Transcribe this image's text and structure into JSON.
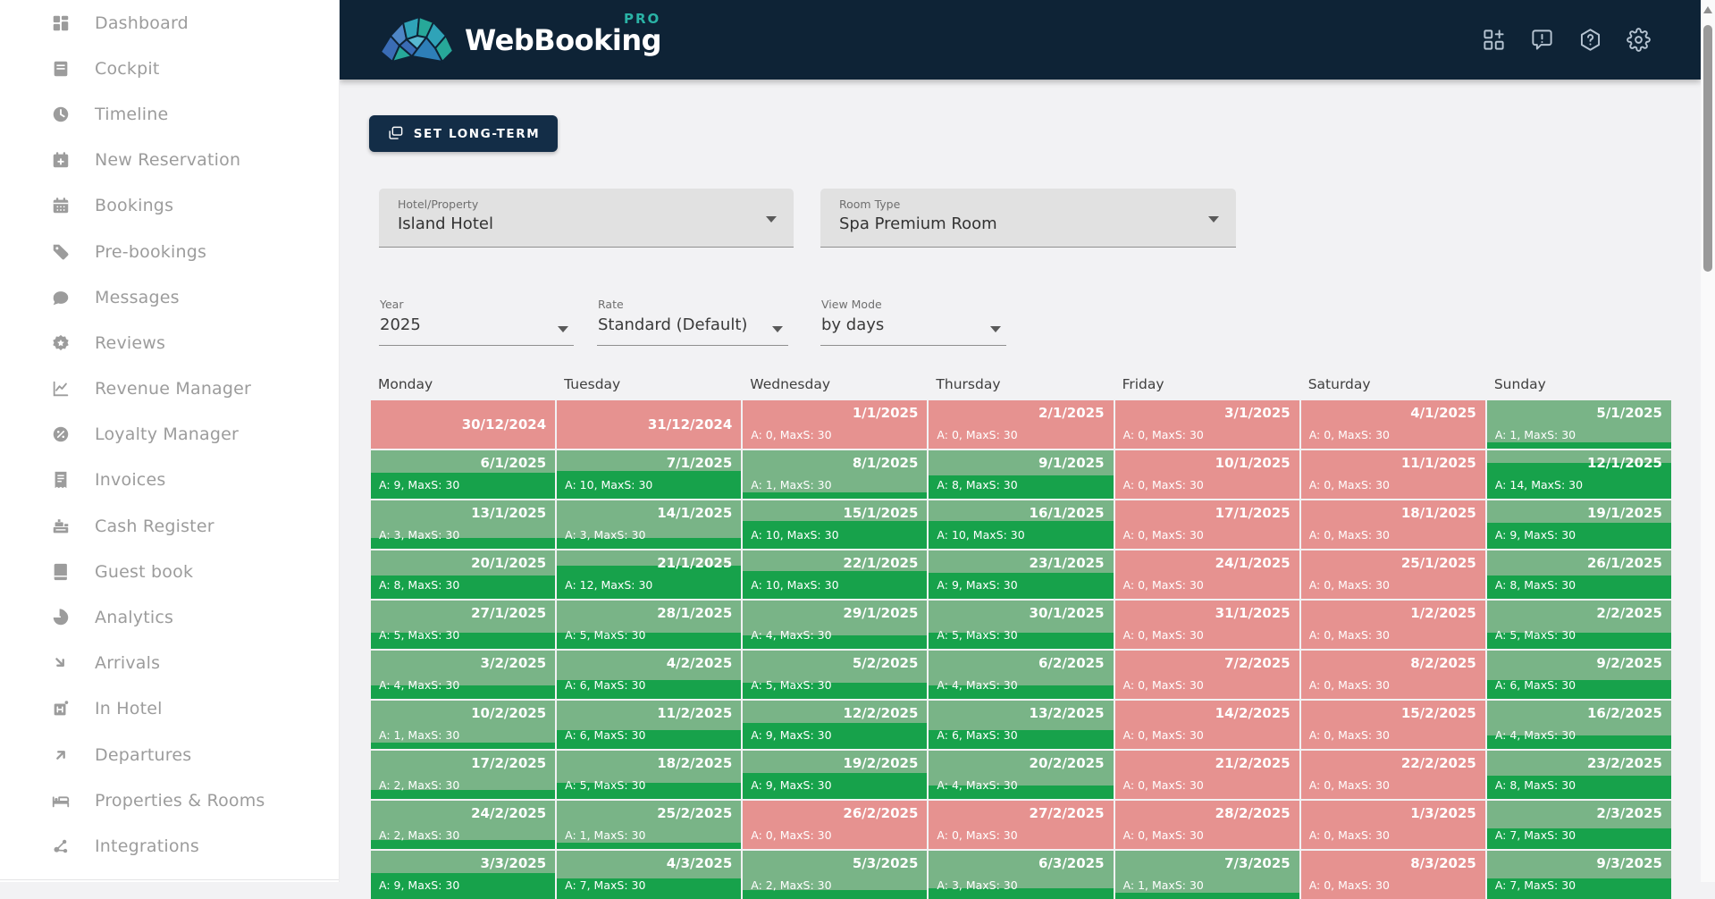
{
  "header": {
    "logo_text": "WebBooking",
    "logo_badge": "PRO",
    "action_icons": [
      "grid-plus",
      "comment-alert",
      "help-hexagon",
      "settings-gear"
    ]
  },
  "sidebar": {
    "items": [
      {
        "label": "Dashboard",
        "icon": "dashboard"
      },
      {
        "label": "Cockpit",
        "icon": "cockpit"
      },
      {
        "label": "Timeline",
        "icon": "timeline"
      },
      {
        "label": "New Reservation",
        "icon": "new-reservation"
      },
      {
        "label": "Bookings",
        "icon": "bookings"
      },
      {
        "label": "Pre-bookings",
        "icon": "pre-bookings"
      },
      {
        "label": "Messages",
        "icon": "messages"
      },
      {
        "label": "Reviews",
        "icon": "reviews"
      },
      {
        "label": "Revenue Manager",
        "icon": "revenue-manager"
      },
      {
        "label": "Loyalty Manager",
        "icon": "loyalty-manager"
      },
      {
        "label": "Invoices",
        "icon": "invoices"
      },
      {
        "label": "Cash Register",
        "icon": "cash-register"
      },
      {
        "label": "Guest book",
        "icon": "guest-book"
      },
      {
        "label": "Analytics",
        "icon": "analytics"
      },
      {
        "label": "Arrivals",
        "icon": "arrivals"
      },
      {
        "label": "In Hotel",
        "icon": "in-hotel"
      },
      {
        "label": "Departures",
        "icon": "departures"
      },
      {
        "label": "Properties & Rooms",
        "icon": "properties-rooms"
      },
      {
        "label": "Integrations",
        "icon": "integrations"
      }
    ]
  },
  "toolbar": {
    "set_long_term_label": "SET LONG-TERM"
  },
  "filters": {
    "hotel_property": {
      "label": "Hotel/Property",
      "value": "Island Hotel"
    },
    "room_type": {
      "label": "Room Type",
      "value": "Spa Premium Room"
    },
    "year": {
      "label": "Year",
      "value": "2025"
    },
    "rate": {
      "label": "Rate",
      "value": "Standard (Default)"
    },
    "view_mode": {
      "label": "View Mode",
      "value": "by days"
    }
  },
  "calendar": {
    "weekdays": [
      "Monday",
      "Tuesday",
      "Wednesday",
      "Thursday",
      "Friday",
      "Saturday",
      "Sunday"
    ],
    "max_spots": 30,
    "cell_label_template": "A: {a}, MaxS: {max}",
    "weeks": [
      [
        {
          "d": "30/12/2024",
          "a": null
        },
        {
          "d": "31/12/2024",
          "a": null
        },
        {
          "d": "1/1/2025",
          "a": 0
        },
        {
          "d": "2/1/2025",
          "a": 0
        },
        {
          "d": "3/1/2025",
          "a": 0
        },
        {
          "d": "4/1/2025",
          "a": 0
        },
        {
          "d": "5/1/2025",
          "a": 1
        }
      ],
      [
        {
          "d": "6/1/2025",
          "a": 9
        },
        {
          "d": "7/1/2025",
          "a": 10
        },
        {
          "d": "8/1/2025",
          "a": 1
        },
        {
          "d": "9/1/2025",
          "a": 8
        },
        {
          "d": "10/1/2025",
          "a": 0
        },
        {
          "d": "11/1/2025",
          "a": 0
        },
        {
          "d": "12/1/2025",
          "a": 14
        }
      ],
      [
        {
          "d": "13/1/2025",
          "a": 3
        },
        {
          "d": "14/1/2025",
          "a": 3
        },
        {
          "d": "15/1/2025",
          "a": 10
        },
        {
          "d": "16/1/2025",
          "a": 10
        },
        {
          "d": "17/1/2025",
          "a": 0
        },
        {
          "d": "18/1/2025",
          "a": 0
        },
        {
          "d": "19/1/2025",
          "a": 9
        }
      ],
      [
        {
          "d": "20/1/2025",
          "a": 8
        },
        {
          "d": "21/1/2025",
          "a": 12
        },
        {
          "d": "22/1/2025",
          "a": 10
        },
        {
          "d": "23/1/2025",
          "a": 9
        },
        {
          "d": "24/1/2025",
          "a": 0
        },
        {
          "d": "25/1/2025",
          "a": 0
        },
        {
          "d": "26/1/2025",
          "a": 8
        }
      ],
      [
        {
          "d": "27/1/2025",
          "a": 5
        },
        {
          "d": "28/1/2025",
          "a": 5
        },
        {
          "d": "29/1/2025",
          "a": 4
        },
        {
          "d": "30/1/2025",
          "a": 5
        },
        {
          "d": "31/1/2025",
          "a": 0
        },
        {
          "d": "1/2/2025",
          "a": 0
        },
        {
          "d": "2/2/2025",
          "a": 5
        }
      ],
      [
        {
          "d": "3/2/2025",
          "a": 4
        },
        {
          "d": "4/2/2025",
          "a": 6
        },
        {
          "d": "5/2/2025",
          "a": 5
        },
        {
          "d": "6/2/2025",
          "a": 4
        },
        {
          "d": "7/2/2025",
          "a": 0
        },
        {
          "d": "8/2/2025",
          "a": 0
        },
        {
          "d": "9/2/2025",
          "a": 6
        }
      ],
      [
        {
          "d": "10/2/2025",
          "a": 1
        },
        {
          "d": "11/2/2025",
          "a": 6
        },
        {
          "d": "12/2/2025",
          "a": 9
        },
        {
          "d": "13/2/2025",
          "a": 6
        },
        {
          "d": "14/2/2025",
          "a": 0
        },
        {
          "d": "15/2/2025",
          "a": 0
        },
        {
          "d": "16/2/2025",
          "a": 4
        }
      ],
      [
        {
          "d": "17/2/2025",
          "a": 2
        },
        {
          "d": "18/2/2025",
          "a": 5
        },
        {
          "d": "19/2/2025",
          "a": 9
        },
        {
          "d": "20/2/2025",
          "a": 4
        },
        {
          "d": "21/2/2025",
          "a": 0
        },
        {
          "d": "22/2/2025",
          "a": 0
        },
        {
          "d": "23/2/2025",
          "a": 8
        }
      ],
      [
        {
          "d": "24/2/2025",
          "a": 2
        },
        {
          "d": "25/2/2025",
          "a": 1
        },
        {
          "d": "26/2/2025",
          "a": 0
        },
        {
          "d": "27/2/2025",
          "a": 0
        },
        {
          "d": "28/2/2025",
          "a": 0
        },
        {
          "d": "1/3/2025",
          "a": 0
        },
        {
          "d": "2/3/2025",
          "a": 7
        }
      ],
      [
        {
          "d": "3/3/2025",
          "a": 9
        },
        {
          "d": "4/3/2025",
          "a": 7
        },
        {
          "d": "5/3/2025",
          "a": 2
        },
        {
          "d": "6/3/2025",
          "a": 3
        },
        {
          "d": "7/3/2025",
          "a": 1
        },
        {
          "d": "8/3/2025",
          "a": 0
        },
        {
          "d": "9/3/2025",
          "a": 7
        }
      ]
    ]
  },
  "colors": {
    "header_navy": "#0e2336",
    "accent_teal": "#2ab3a6",
    "green_light": "#79b487",
    "green_dark": "#17a24b",
    "red": "#e69290"
  }
}
